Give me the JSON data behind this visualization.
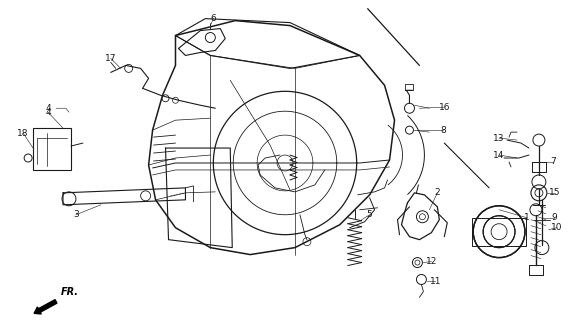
{
  "bg_color": "#ffffff",
  "line_color": "#1a1a1a",
  "fig_width": 5.75,
  "fig_height": 3.2,
  "dpi": 100
}
